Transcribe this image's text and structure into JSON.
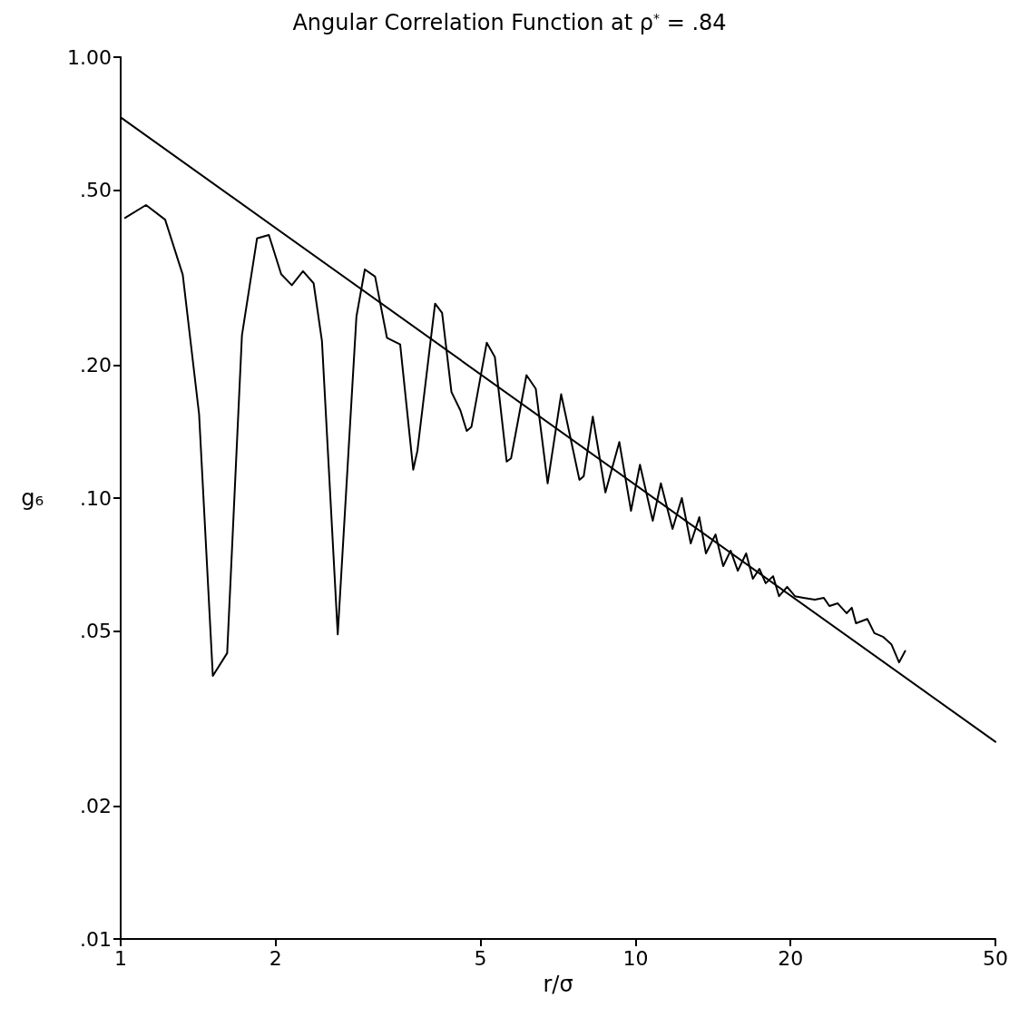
{
  "chart_data": {
    "type": "line",
    "title": "Angular Correlation Function at ρ$^{*}$ = .84",
    "xlabel": "r/σ",
    "ylabel": "g₆",
    "log": "xy",
    "grid": false,
    "marker": "none",
    "line_style": "solid",
    "xlim": [
      1,
      50
    ],
    "xticks": [
      1,
      2,
      5,
      10,
      20,
      50
    ],
    "ylim": [
      0.01,
      1
    ],
    "yticks": [
      {
        "value": 0.01,
        "label": ".01"
      },
      {
        "value": 0.02,
        "label": ".02"
      },
      {
        "value": 0.05,
        "label": ".05"
      },
      {
        "value": 0.1,
        "label": ".10"
      },
      {
        "value": 0.2,
        "label": ".20"
      },
      {
        "value": 0.5,
        "label": ".50"
      },
      {
        "value": 1,
        "label": "1.00"
      }
    ],
    "series": [
      {
        "color": "#000000",
        "x": [
          1.02,
          1.12,
          1.22,
          1.32,
          1.42,
          1.51,
          1.61,
          1.72,
          1.84,
          1.94,
          2.05,
          2.15,
          2.26,
          2.37,
          2.46,
          2.64,
          2.87,
          2.98,
          3.12,
          3.29,
          3.49,
          3.7,
          3.77,
          4.08,
          4.21,
          4.39,
          4.57,
          4.7,
          4.8,
          5.14,
          5.33,
          5.62,
          5.73,
          6.14,
          6.4,
          6.75,
          7.17,
          7.78,
          7.93,
          8.26,
          8.74,
          9.3,
          9.8,
          10.2,
          10.8,
          11.2,
          11.8,
          12.3,
          12.8,
          13.3,
          13.7,
          14.3,
          14.8,
          15.3,
          15.8,
          16.4,
          16.9,
          17.4,
          17.9,
          18.5,
          19.0,
          19.7,
          20.4,
          21.2,
          22.3,
          23.2,
          23.8,
          24.7,
          25.7,
          26.3,
          26.8,
          28.2,
          29.1,
          30.3,
          31.4,
          32.5,
          33.4
        ],
        "values": [
          0.432,
          0.462,
          0.428,
          0.321,
          0.155,
          0.0395,
          0.0445,
          0.234,
          0.388,
          0.395,
          0.322,
          0.304,
          0.327,
          0.307,
          0.227,
          0.0491,
          0.258,
          0.33,
          0.318,
          0.231,
          0.223,
          0.116,
          0.128,
          0.276,
          0.263,
          0.174,
          0.158,
          0.142,
          0.145,
          0.225,
          0.209,
          0.121,
          0.123,
          0.19,
          0.177,
          0.108,
          0.172,
          0.11,
          0.112,
          0.153,
          0.103,
          0.134,
          0.0936,
          0.119,
          0.0888,
          0.108,
          0.0851,
          0.1,
          0.0789,
          0.0905,
          0.0749,
          0.0827,
          0.0701,
          0.076,
          0.0684,
          0.0749,
          0.0656,
          0.0691,
          0.0641,
          0.0665,
          0.0599,
          0.0629,
          0.0599,
          0.0594,
          0.0588,
          0.0594,
          0.0569,
          0.0577,
          0.0548,
          0.0564,
          0.052,
          0.0532,
          0.0494,
          0.0484,
          0.0466,
          0.0424,
          0.045
        ]
      },
      {
        "color": "#000000",
        "x": [
          1,
          50
        ],
        "values": [
          0.73,
          0.028
        ]
      }
    ]
  }
}
